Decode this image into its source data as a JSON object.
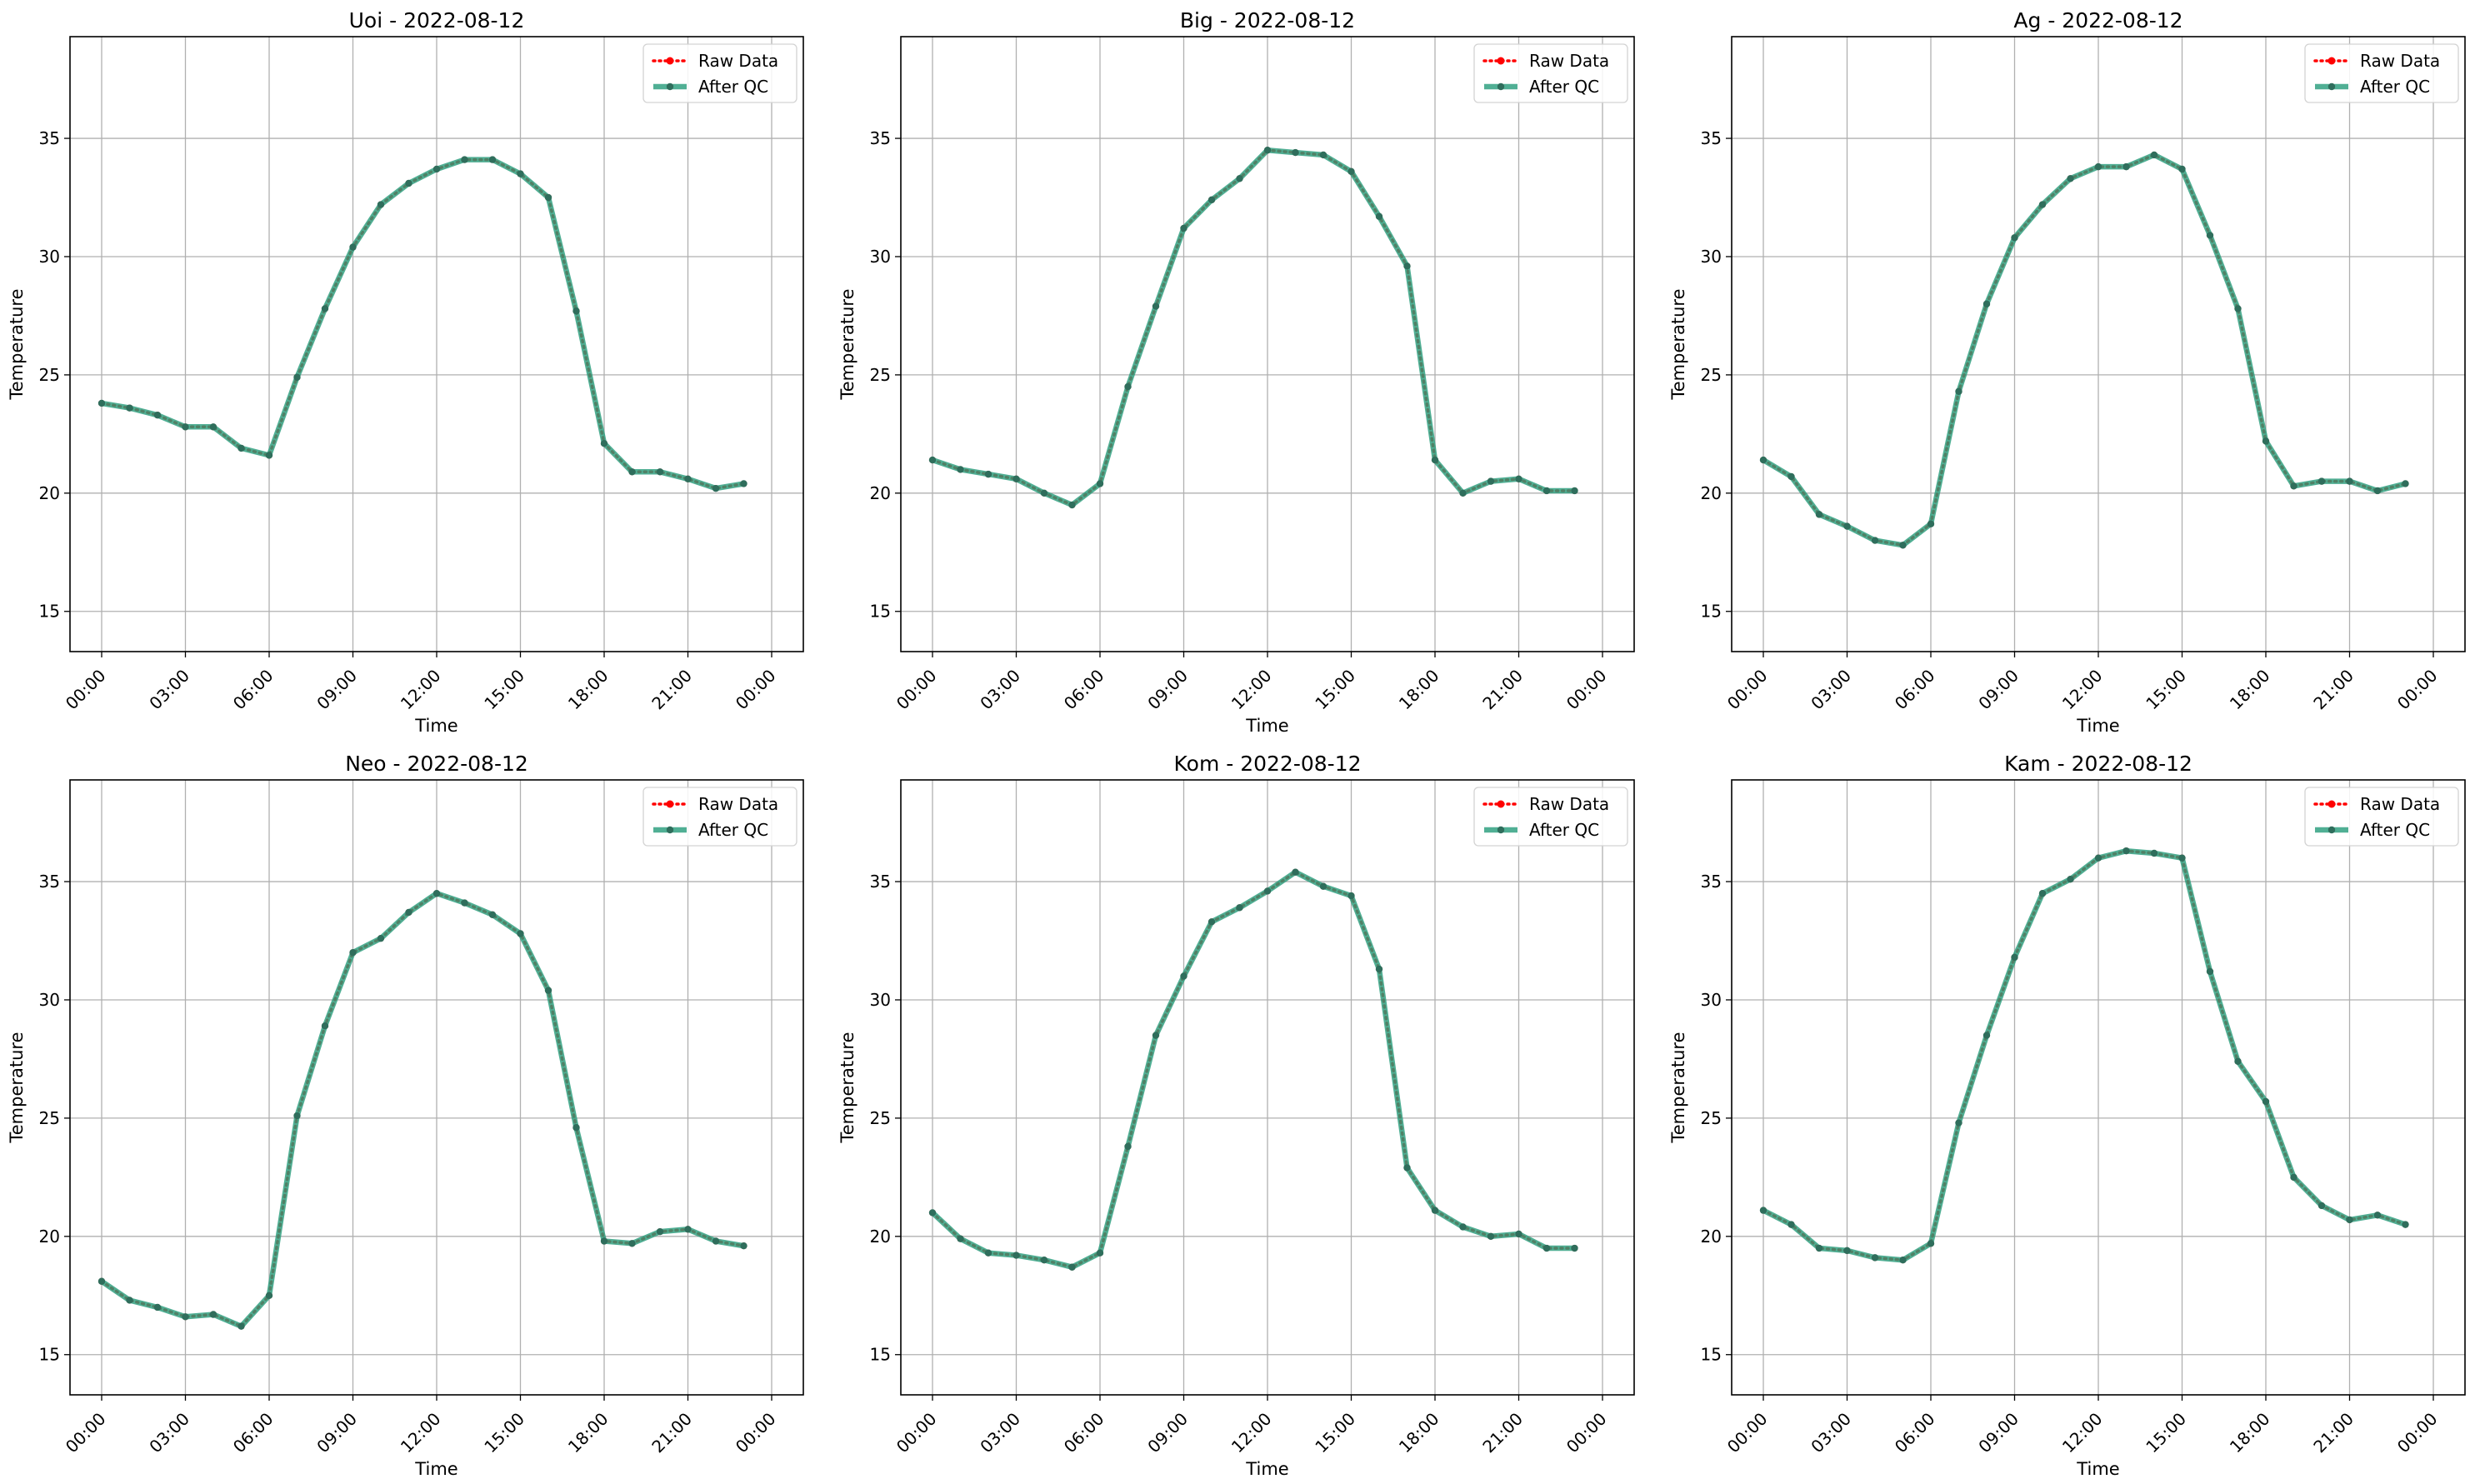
{
  "chart_data": [
    {
      "type": "line",
      "title": "Uoi - 2022-08-12",
      "xlabel": "Time",
      "ylabel": "Temperature",
      "x": [
        "00:00",
        "01:00",
        "02:00",
        "03:00",
        "04:00",
        "05:00",
        "06:00",
        "07:00",
        "08:00",
        "09:00",
        "10:00",
        "11:00",
        "12:00",
        "13:00",
        "14:00",
        "15:00",
        "16:00",
        "17:00",
        "18:00",
        "19:00",
        "20:00",
        "21:00",
        "22:00",
        "23:00"
      ],
      "xticks": [
        "00:00",
        "03:00",
        "06:00",
        "09:00",
        "12:00",
        "15:00",
        "18:00",
        "21:00",
        "00:00"
      ],
      "ylim": [
        13.3,
        39.3
      ],
      "yticks": [
        15,
        20,
        25,
        30,
        35
      ],
      "grid": true,
      "legend": "top-right",
      "series": [
        {
          "name": "Raw Data",
          "color": "#ff0000",
          "style": "dotted",
          "values": [
            23.8,
            23.6,
            23.3,
            22.8,
            22.8,
            21.9,
            21.6,
            24.9,
            27.8,
            30.4,
            32.2,
            33.1,
            33.7,
            34.1,
            34.1,
            33.5,
            32.5,
            27.7,
            22.1,
            20.9,
            20.9,
            20.6,
            20.2,
            20.4
          ]
        },
        {
          "name": "After QC",
          "color": "#2a9d7c",
          "style": "solid",
          "values": [
            23.8,
            23.6,
            23.3,
            22.8,
            22.8,
            21.9,
            21.6,
            24.9,
            27.8,
            30.4,
            32.2,
            33.1,
            33.7,
            34.1,
            34.1,
            33.5,
            32.5,
            27.7,
            22.1,
            20.9,
            20.9,
            20.6,
            20.2,
            20.4
          ]
        }
      ]
    },
    {
      "type": "line",
      "title": "Big - 2022-08-12",
      "xlabel": "Time",
      "ylabel": "Temperature",
      "x": [
        "00:00",
        "01:00",
        "02:00",
        "03:00",
        "04:00",
        "05:00",
        "06:00",
        "07:00",
        "08:00",
        "09:00",
        "10:00",
        "11:00",
        "12:00",
        "13:00",
        "14:00",
        "15:00",
        "16:00",
        "17:00",
        "18:00",
        "19:00",
        "20:00",
        "21:00",
        "22:00",
        "23:00"
      ],
      "xticks": [
        "00:00",
        "03:00",
        "06:00",
        "09:00",
        "12:00",
        "15:00",
        "18:00",
        "21:00",
        "00:00"
      ],
      "ylim": [
        13.3,
        39.3
      ],
      "yticks": [
        15,
        20,
        25,
        30,
        35
      ],
      "grid": true,
      "legend": "top-right",
      "series": [
        {
          "name": "Raw Data",
          "color": "#ff0000",
          "style": "dotted",
          "values": [
            21.4,
            21.0,
            20.8,
            20.6,
            20.0,
            19.5,
            20.4,
            24.5,
            27.9,
            31.2,
            32.4,
            33.3,
            34.5,
            34.4,
            34.3,
            33.6,
            31.7,
            29.6,
            21.4,
            20.0,
            20.5,
            20.6,
            20.1,
            20.1
          ]
        },
        {
          "name": "After QC",
          "color": "#2a9d7c",
          "style": "solid",
          "values": [
            21.4,
            21.0,
            20.8,
            20.6,
            20.0,
            19.5,
            20.4,
            24.5,
            27.9,
            31.2,
            32.4,
            33.3,
            34.5,
            34.4,
            34.3,
            33.6,
            31.7,
            29.6,
            21.4,
            20.0,
            20.5,
            20.6,
            20.1,
            20.1
          ]
        }
      ]
    },
    {
      "type": "line",
      "title": "Ag - 2022-08-12",
      "xlabel": "Time",
      "ylabel": "Temperature",
      "x": [
        "00:00",
        "01:00",
        "02:00",
        "03:00",
        "04:00",
        "05:00",
        "06:00",
        "07:00",
        "08:00",
        "09:00",
        "10:00",
        "11:00",
        "12:00",
        "13:00",
        "14:00",
        "15:00",
        "16:00",
        "17:00",
        "18:00",
        "19:00",
        "20:00",
        "21:00",
        "22:00",
        "23:00"
      ],
      "xticks": [
        "00:00",
        "03:00",
        "06:00",
        "09:00",
        "12:00",
        "15:00",
        "18:00",
        "21:00",
        "00:00"
      ],
      "ylim": [
        13.3,
        39.3
      ],
      "yticks": [
        15,
        20,
        25,
        30,
        35
      ],
      "grid": true,
      "legend": "top-right",
      "series": [
        {
          "name": "Raw Data",
          "color": "#ff0000",
          "style": "dotted",
          "values": [
            21.4,
            20.7,
            19.1,
            18.6,
            18.0,
            17.8,
            18.7,
            24.3,
            28.0,
            30.8,
            32.2,
            33.3,
            33.8,
            33.8,
            34.3,
            33.7,
            30.9,
            27.8,
            22.2,
            20.3,
            20.5,
            20.5,
            20.1,
            20.4
          ]
        },
        {
          "name": "After QC",
          "color": "#2a9d7c",
          "style": "solid",
          "values": [
            21.4,
            20.7,
            19.1,
            18.6,
            18.0,
            17.8,
            18.7,
            24.3,
            28.0,
            30.8,
            32.2,
            33.3,
            33.8,
            33.8,
            34.3,
            33.7,
            30.9,
            27.8,
            22.2,
            20.3,
            20.5,
            20.5,
            20.1,
            20.4
          ]
        }
      ]
    },
    {
      "type": "line",
      "title": "Neo - 2022-08-12",
      "xlabel": "Time",
      "ylabel": "Temperature",
      "x": [
        "00:00",
        "01:00",
        "02:00",
        "03:00",
        "04:00",
        "05:00",
        "06:00",
        "07:00",
        "08:00",
        "09:00",
        "10:00",
        "11:00",
        "12:00",
        "13:00",
        "14:00",
        "15:00",
        "16:00",
        "17:00",
        "18:00",
        "19:00",
        "20:00",
        "21:00",
        "22:00",
        "23:00"
      ],
      "xticks": [
        "00:00",
        "03:00",
        "06:00",
        "09:00",
        "12:00",
        "15:00",
        "18:00",
        "21:00",
        "00:00"
      ],
      "ylim": [
        13.3,
        39.3
      ],
      "yticks": [
        15,
        20,
        25,
        30,
        35
      ],
      "grid": true,
      "legend": "top-right",
      "series": [
        {
          "name": "Raw Data",
          "color": "#ff0000",
          "style": "dotted",
          "values": [
            18.1,
            17.3,
            17.0,
            16.6,
            16.7,
            16.2,
            17.5,
            25.1,
            28.9,
            32.0,
            32.6,
            33.7,
            34.5,
            34.1,
            33.6,
            32.8,
            30.4,
            24.6,
            19.8,
            19.7,
            20.2,
            20.3,
            19.8,
            19.6
          ]
        },
        {
          "name": "After QC",
          "color": "#2a9d7c",
          "style": "solid",
          "values": [
            18.1,
            17.3,
            17.0,
            16.6,
            16.7,
            16.2,
            17.5,
            25.1,
            28.9,
            32.0,
            32.6,
            33.7,
            34.5,
            34.1,
            33.6,
            32.8,
            30.4,
            24.6,
            19.8,
            19.7,
            20.2,
            20.3,
            19.8,
            19.6
          ]
        }
      ]
    },
    {
      "type": "line",
      "title": "Kom - 2022-08-12",
      "xlabel": "Time",
      "ylabel": "Temperature",
      "x": [
        "00:00",
        "01:00",
        "02:00",
        "03:00",
        "04:00",
        "05:00",
        "06:00",
        "07:00",
        "08:00",
        "09:00",
        "10:00",
        "11:00",
        "12:00",
        "13:00",
        "14:00",
        "15:00",
        "16:00",
        "17:00",
        "18:00",
        "19:00",
        "20:00",
        "21:00",
        "22:00",
        "23:00"
      ],
      "xticks": [
        "00:00",
        "03:00",
        "06:00",
        "09:00",
        "12:00",
        "15:00",
        "18:00",
        "21:00",
        "00:00"
      ],
      "ylim": [
        13.3,
        39.3
      ],
      "yticks": [
        15,
        20,
        25,
        30,
        35
      ],
      "grid": true,
      "legend": "top-right",
      "series": [
        {
          "name": "Raw Data",
          "color": "#ff0000",
          "style": "dotted",
          "values": [
            21.0,
            19.9,
            19.3,
            19.2,
            19.0,
            18.7,
            19.3,
            23.8,
            28.5,
            31.0,
            33.3,
            33.9,
            34.6,
            35.4,
            34.8,
            34.4,
            31.3,
            22.9,
            21.1,
            20.4,
            20.0,
            20.1,
            19.5,
            19.5
          ]
        },
        {
          "name": "After QC",
          "color": "#2a9d7c",
          "style": "solid",
          "values": [
            21.0,
            19.9,
            19.3,
            19.2,
            19.0,
            18.7,
            19.3,
            23.8,
            28.5,
            31.0,
            33.3,
            33.9,
            34.6,
            35.4,
            34.8,
            34.4,
            31.3,
            22.9,
            21.1,
            20.4,
            20.0,
            20.1,
            19.5,
            19.5
          ]
        }
      ]
    },
    {
      "type": "line",
      "title": "Kam - 2022-08-12",
      "xlabel": "Time",
      "ylabel": "Temperature",
      "x": [
        "00:00",
        "01:00",
        "02:00",
        "03:00",
        "04:00",
        "05:00",
        "06:00",
        "07:00",
        "08:00",
        "09:00",
        "10:00",
        "11:00",
        "12:00",
        "13:00",
        "14:00",
        "15:00",
        "16:00",
        "17:00",
        "18:00",
        "19:00",
        "20:00",
        "21:00",
        "22:00",
        "23:00"
      ],
      "xticks": [
        "00:00",
        "03:00",
        "06:00",
        "09:00",
        "12:00",
        "15:00",
        "18:00",
        "21:00",
        "00:00"
      ],
      "ylim": [
        13.3,
        39.3
      ],
      "yticks": [
        15,
        20,
        25,
        30,
        35
      ],
      "grid": true,
      "legend": "top-right",
      "series": [
        {
          "name": "Raw Data",
          "color": "#ff0000",
          "style": "dotted",
          "values": [
            21.1,
            20.5,
            19.5,
            19.4,
            19.1,
            19.0,
            19.7,
            24.8,
            28.5,
            31.8,
            34.5,
            35.1,
            36.0,
            36.3,
            36.2,
            36.0,
            31.2,
            27.4,
            25.7,
            22.5,
            21.3,
            20.7,
            20.9,
            20.5
          ]
        },
        {
          "name": "After QC",
          "color": "#2a9d7c",
          "style": "solid",
          "values": [
            21.1,
            20.5,
            19.5,
            19.4,
            19.1,
            19.0,
            19.7,
            24.8,
            28.5,
            31.8,
            34.5,
            35.1,
            36.0,
            36.3,
            36.2,
            36.0,
            31.2,
            27.4,
            25.7,
            22.5,
            21.3,
            20.7,
            20.9,
            20.5
          ]
        }
      ]
    }
  ]
}
